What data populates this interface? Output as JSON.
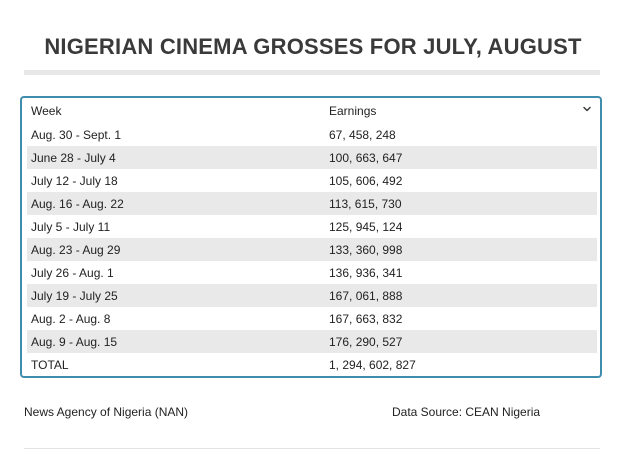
{
  "title": "NIGERIAN CINEMA GROSSES FOR JULY, AUGUST",
  "table": {
    "headers": {
      "week": "Week",
      "earnings": "Earnings",
      "sort_icon": "chevron-down-icon"
    },
    "rows": [
      {
        "week": "Aug. 30 - Sept. 1",
        "earnings": "67, 458, 248"
      },
      {
        "week": "June 28 - July 4",
        "earnings": "100, 663, 647"
      },
      {
        "week": "July 12 - July 18",
        "earnings": "105, 606, 492"
      },
      {
        "week": "Aug. 16 - Aug. 22",
        "earnings": "113, 615, 730"
      },
      {
        "week": "July 5 - July 11",
        "earnings": "125, 945, 124"
      },
      {
        "week": "Aug. 23 - Aug 29",
        "earnings": "133, 360, 998"
      },
      {
        "week": "July 26 - Aug. 1",
        "earnings": "136, 936, 341"
      },
      {
        "week": "July 19 - July 25",
        "earnings": "167, 061, 888"
      },
      {
        "week": "Aug. 2 - Aug. 8",
        "earnings": "167, 663, 832"
      },
      {
        "week": "Aug. 9 - Aug. 15",
        "earnings": "176, 290, 527"
      },
      {
        "week": "TOTAL",
        "earnings": "1, 294, 602, 827"
      }
    ]
  },
  "footer": {
    "source_left": "News Agency of Nigeria (NAN)",
    "source_right": "Data Source: CEAN Nigeria"
  },
  "colors": {
    "frame_border": "#3f8dac",
    "row_alt": "#e9e9e9",
    "title": "#3a3a3a"
  }
}
